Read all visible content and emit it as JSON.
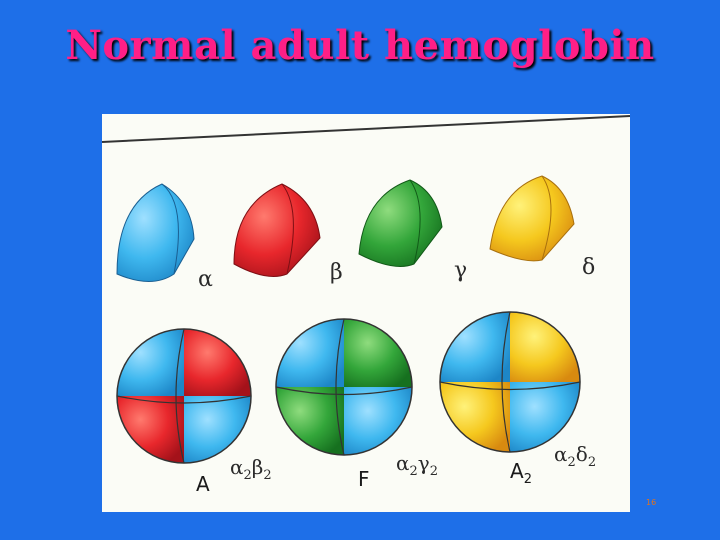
{
  "slide": {
    "title": "Normal adult hemoglobin",
    "page_number": "16"
  },
  "colors": {
    "background": "#1e6fe8",
    "title": "#ff1f86",
    "alpha_subunit": "#3fb8ef",
    "beta_subunit": "#e8272c",
    "gamma_subunit": "#33a63a",
    "delta_subunit": "#f5c81e"
  },
  "subunits": [
    {
      "symbol": "α",
      "name": "alpha",
      "color": "#3fb8ef"
    },
    {
      "symbol": "β",
      "name": "beta",
      "color": "#e8272c"
    },
    {
      "symbol": "γ",
      "name": "gamma",
      "color": "#33a63a"
    },
    {
      "symbol": "δ",
      "name": "delta",
      "color": "#f5c81e"
    }
  ],
  "hemoglobins": [
    {
      "name": "A",
      "composition_base": [
        "α",
        "β"
      ],
      "composition_sub": [
        "2",
        "2"
      ],
      "colors": [
        "#3fb8ef",
        "#e8272c"
      ]
    },
    {
      "name": "F",
      "composition_base": [
        "α",
        "γ"
      ],
      "composition_sub": [
        "2",
        "2"
      ],
      "colors": [
        "#3fb8ef",
        "#33a63a"
      ]
    },
    {
      "name": "A",
      "name_sub": "2",
      "composition_base": [
        "α",
        "δ"
      ],
      "composition_sub": [
        "2",
        "2"
      ],
      "colors": [
        "#3fb8ef",
        "#f5c81e"
      ]
    }
  ]
}
